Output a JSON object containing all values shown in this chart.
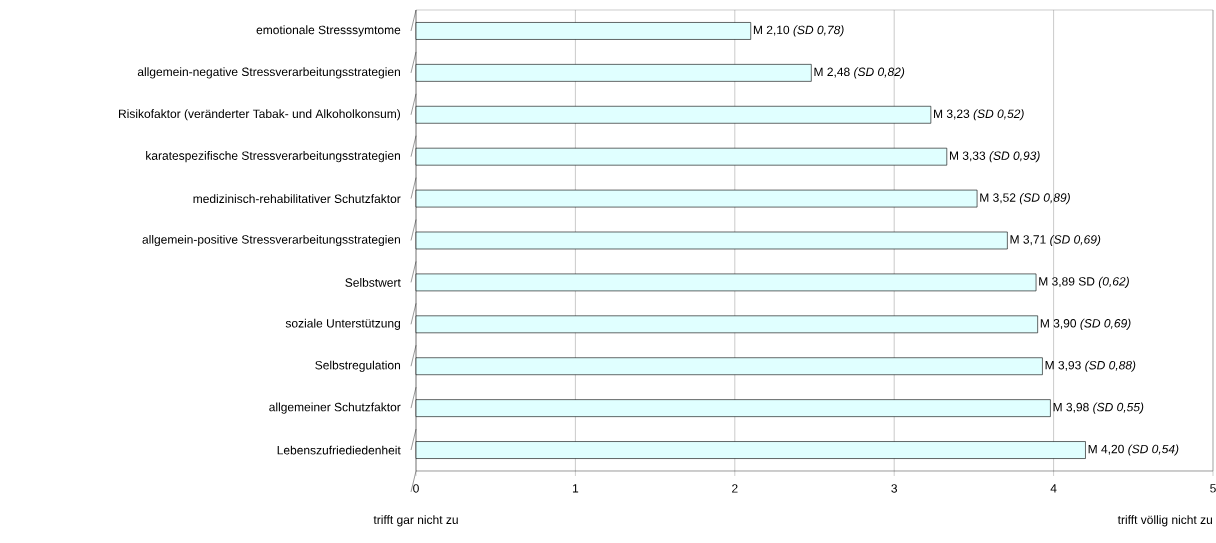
{
  "chart_data": {
    "type": "bar",
    "orientation": "horizontal",
    "categories": [
      "emotionale Stresssymtome",
      "allgemein-negative Stressverarbeitungsstrategien",
      "Risikofaktor (veränderter Tabak- und Alkoholkonsum)",
      "karatespezifische Stressverarbeitungsstrategien",
      "medizinisch-rehabilitativer Schutzfaktor",
      "allgemein-positive Stressverarbeitungsstrategien",
      "Selbstwert",
      "soziale Unterstützung",
      "Selbstregulation",
      "allgemeiner Schutzfaktor",
      "Lebenszufriediedenheit"
    ],
    "values": [
      2.1,
      2.48,
      3.23,
      3.33,
      3.52,
      3.71,
      3.89,
      3.9,
      3.93,
      3.98,
      4.2
    ],
    "value_labels": [
      "M 2,10 *(SD 0,78)*",
      "M 2,48 *(SD 0,82)*",
      "M 3,23 *(SD 0,52)*",
      "M 3,33 *(SD 0,93)*",
      "M 3,52 *(SD 0,89)*",
      "M 3,71 *(SD 0,69)*",
      "M 3,89 SD *(0,62)*",
      "M 3,90 *(SD 0,69)*",
      "M 3,93 *(SD 0,88)*",
      "M 3,98 *(SD 0,55)*",
      "M 4,20 *(SD 0,54)*"
    ],
    "color": "#e0ffff",
    "xlim": [
      0,
      5
    ],
    "xticks": [
      0,
      1,
      2,
      3,
      4,
      5
    ],
    "grid": "x",
    "annotations": [
      "trifft gar nicht zu",
      "trifft völlig nicht zu"
    ]
  }
}
